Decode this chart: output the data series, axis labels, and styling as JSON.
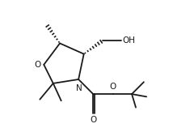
{
  "bg_color": "#ffffff",
  "line_color": "#1a1a1a",
  "line_width": 1.3,
  "font_size": 7.5,
  "xlim": [
    -1,
    11
  ],
  "ylim": [
    -0.5,
    9
  ]
}
